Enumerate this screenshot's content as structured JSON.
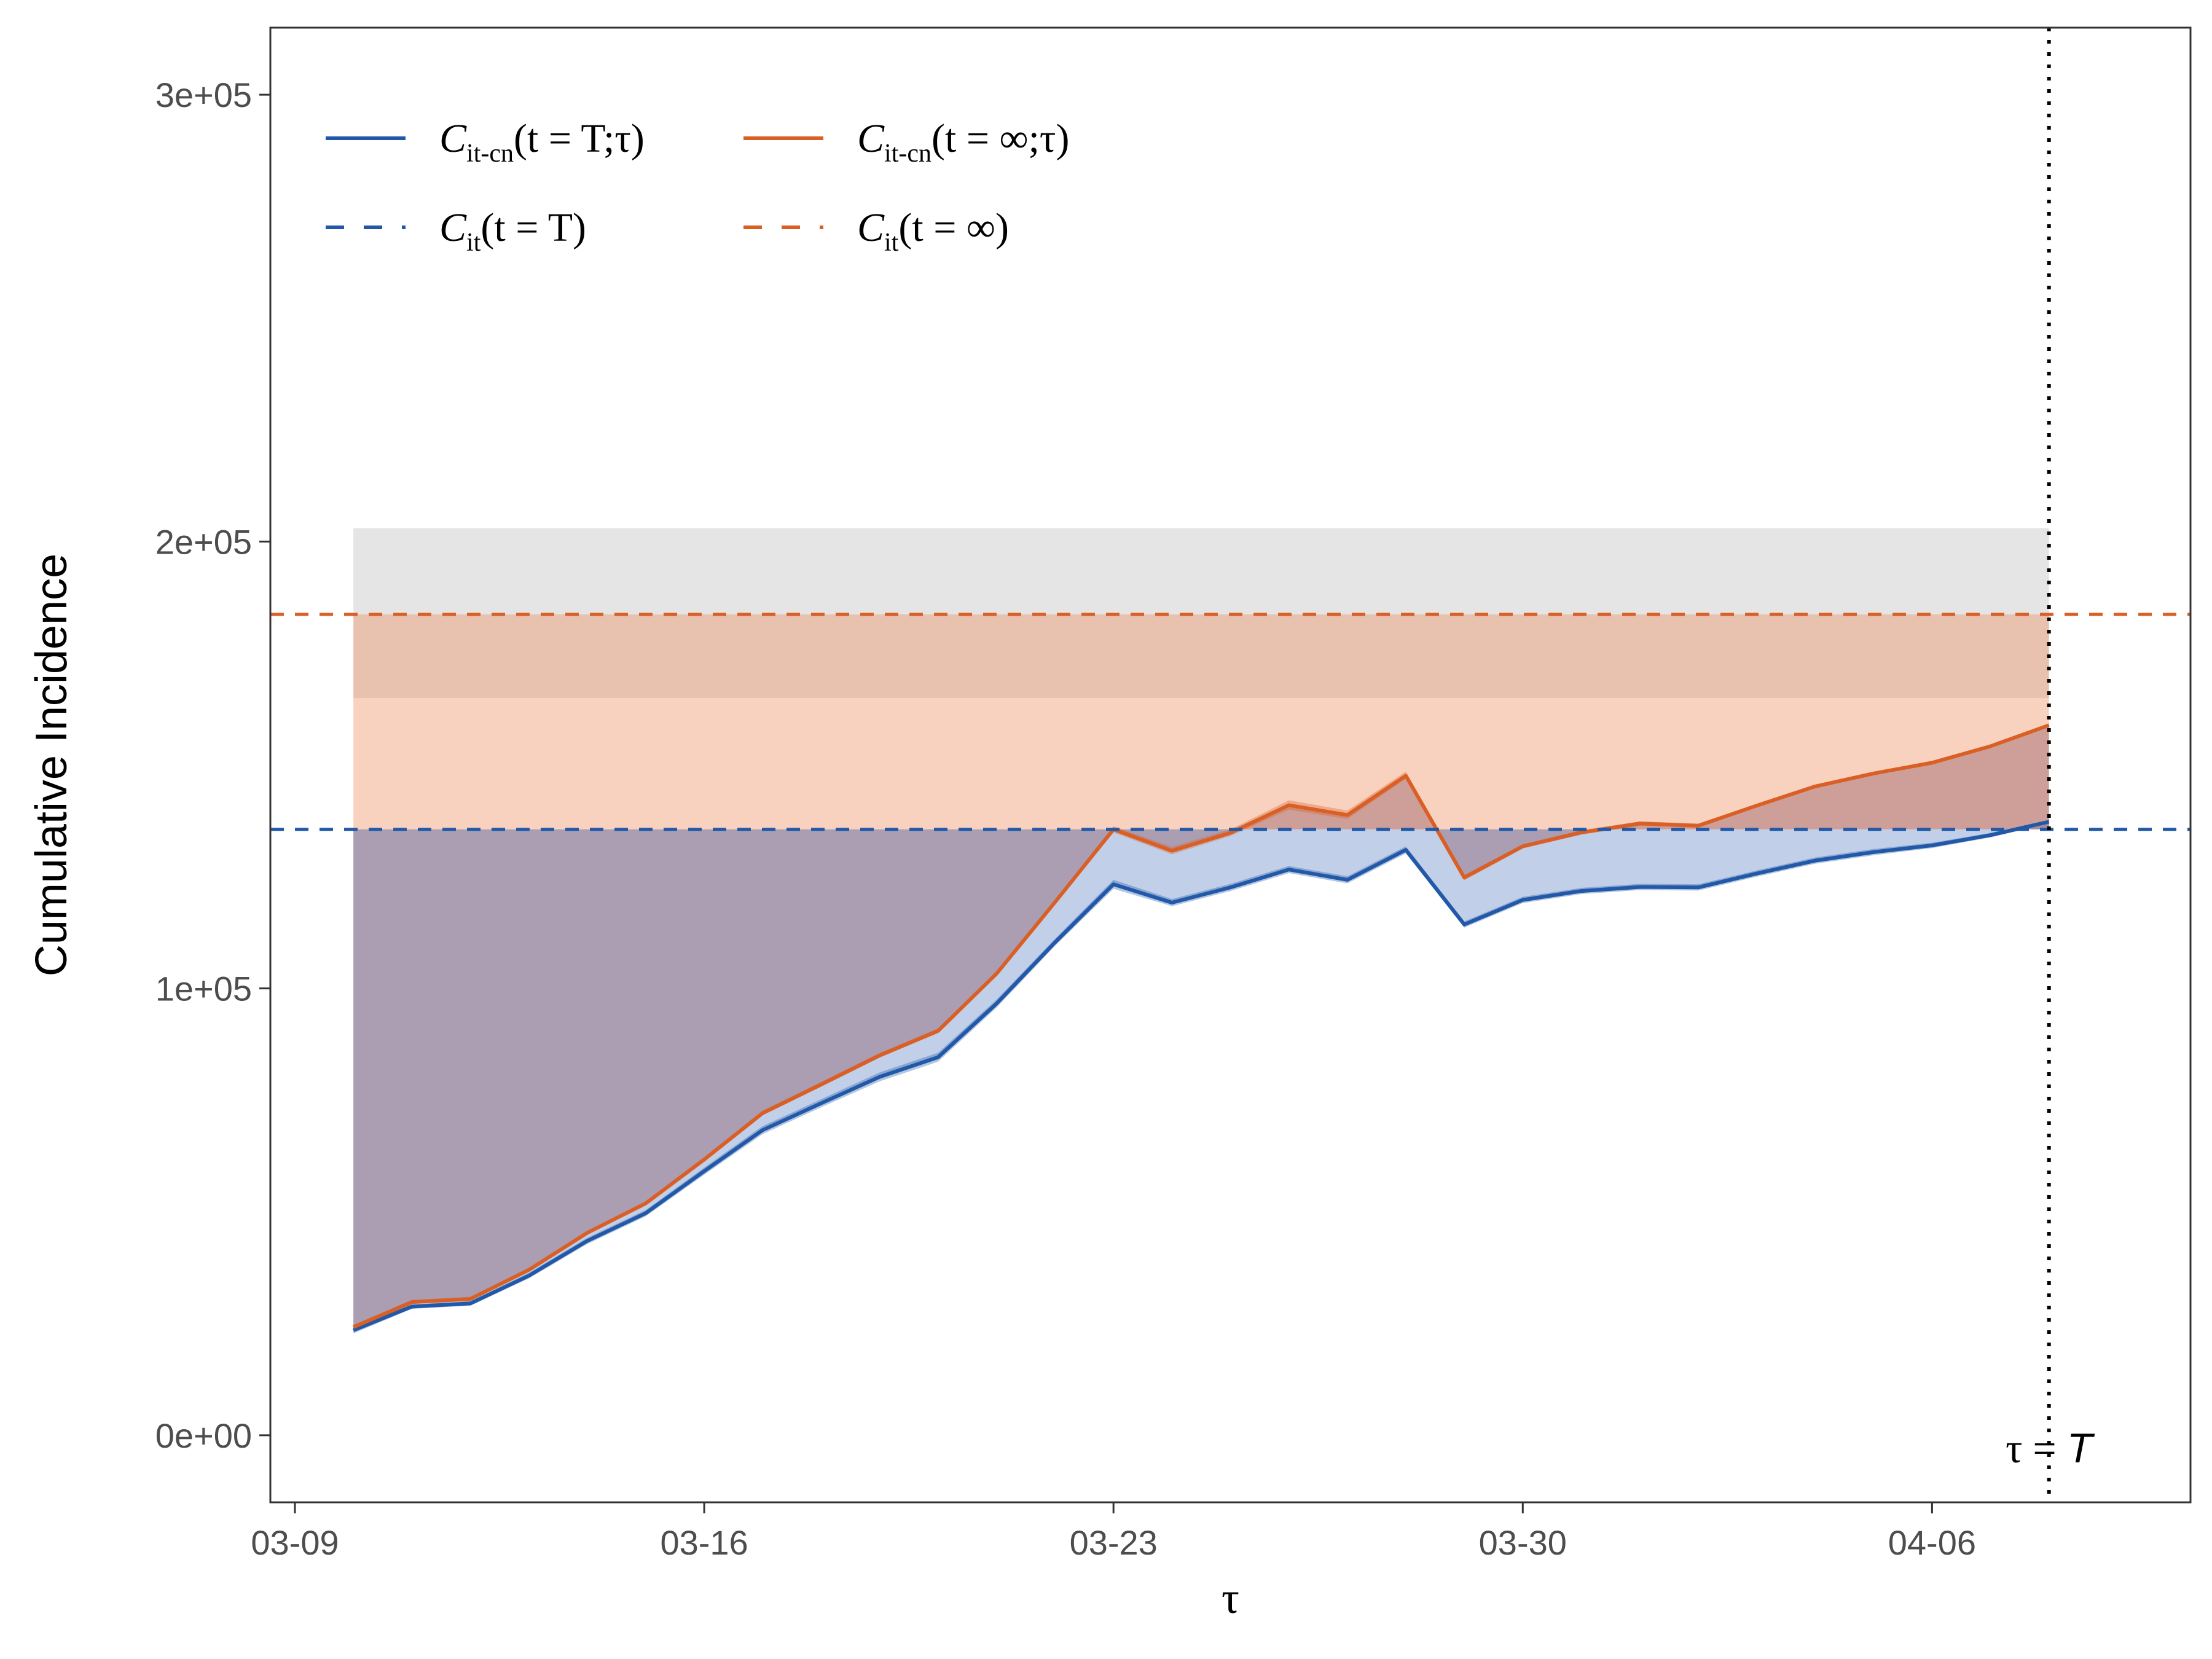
{
  "chart_data": {
    "type": "line",
    "xlabel": "τ",
    "ylabel": "Cumulative Incidence",
    "x_ticks": [
      "03-09",
      "03-16",
      "03-23",
      "03-30",
      "04-06"
    ],
    "y_ticks": [
      "0e+00",
      "1e+05",
      "2e+05",
      "3e+05"
    ],
    "ylim": [
      -15000,
      315000
    ],
    "xlim": [
      "2020-03-09",
      "2020-04-10"
    ],
    "x": [
      "2020-03-10",
      "2020-03-11",
      "2020-03-12",
      "2020-03-13",
      "2020-03-14",
      "2020-03-15",
      "2020-03-16",
      "2020-03-17",
      "2020-03-18",
      "2020-03-19",
      "2020-03-20",
      "2020-03-21",
      "2020-03-22",
      "2020-03-23",
      "2020-03-24",
      "2020-03-25",
      "2020-03-26",
      "2020-03-27",
      "2020-03-28",
      "2020-03-29",
      "2020-03-30",
      "2020-03-31",
      "2020-04-01",
      "2020-04-02",
      "2020-04-03",
      "2020-04-04",
      "2020-04-05",
      "2020-04-06",
      "2020-04-07",
      "2020-04-08"
    ],
    "series": [
      {
        "name": "C_it-cn(t = T;τ)",
        "color": "#2158A8",
        "values": [
          23500,
          28800,
          29500,
          35700,
          43500,
          49700,
          59100,
          68300,
          74300,
          80200,
          84600,
          96600,
          110300,
          123300,
          119200,
          122600,
          126600,
          124300,
          131000,
          114300,
          119800,
          121800,
          122700,
          122600,
          125700,
          128600,
          130500,
          132000,
          134300,
          137300
        ],
        "band_low": [
          22800,
          28300,
          29000,
          35100,
          42800,
          49000,
          58300,
          67400,
          73400,
          79200,
          83600,
          95700,
          109500,
          122300,
          118400,
          121800,
          125800,
          123500,
          130200,
          113600,
          119100,
          121100,
          122000,
          121900,
          125000,
          127900,
          129800,
          131400,
          133800,
          136900
        ],
        "band_high": [
          24200,
          29300,
          30000,
          36300,
          44200,
          50400,
          59900,
          69200,
          75200,
          81200,
          85600,
          97500,
          111100,
          124300,
          120000,
          123400,
          127400,
          125100,
          131800,
          115000,
          120500,
          122500,
          123400,
          123300,
          126400,
          129300,
          131200,
          132600,
          134800,
          137700
        ]
      },
      {
        "name": "C_it-cn(t = ∞;τ)",
        "color": "#D95F25",
        "values": [
          24200,
          29800,
          30500,
          37000,
          45300,
          51900,
          61700,
          72100,
          78500,
          85000,
          90500,
          103300,
          119300,
          135600,
          130800,
          134800,
          141000,
          138800,
          147600,
          124800,
          131800,
          134900,
          136900,
          136400,
          140900,
          145200,
          148100,
          150500,
          154200,
          158900
        ],
        "band_low": [
          23700,
          29400,
          30100,
          36600,
          44900,
          51500,
          61300,
          71600,
          78000,
          84500,
          90000,
          102800,
          118800,
          134900,
          130000,
          134100,
          140000,
          137900,
          146900,
          124200,
          131300,
          134400,
          136400,
          136000,
          140500,
          144800,
          147700,
          150100,
          153900,
          158600
        ],
        "band_high": [
          24700,
          30300,
          31000,
          37500,
          45800,
          52400,
          62300,
          72700,
          79100,
          85600,
          91100,
          103900,
          119900,
          136300,
          131700,
          135600,
          142100,
          139800,
          148500,
          125400,
          132300,
          135400,
          137400,
          136900,
          141300,
          145600,
          148500,
          150900,
          154500,
          159200
        ]
      },
      {
        "name": "C_it(t = T)",
        "color": "#2158A8",
        "dashed": true,
        "value": 135600
      },
      {
        "name": "C_it(t = ∞)",
        "color": "#D95F25",
        "dashed": true,
        "value": 183700
      }
    ],
    "bands": {
      "grey_range": [
        165000,
        203000
      ],
      "orange_range": [
        135600,
        183700
      ]
    },
    "vline": {
      "x": "2020-04-08",
      "label_left": "τ",
      "label_mid": "=",
      "label_right": "T"
    },
    "legend": {
      "placement": "top-left",
      "entries": [
        {
          "main": "C",
          "sub": "it-cn",
          "args": "(t = T;τ)",
          "color": "#2158A8",
          "dashed": false
        },
        {
          "main": "C",
          "sub": "it-cn",
          "args": "(t = ∞;τ)",
          "color": "#D95F25",
          "dashed": false
        },
        {
          "main": "C",
          "sub": "it",
          "args": "(t = T)",
          "color": "#2158A8",
          "dashed": true
        },
        {
          "main": "C",
          "sub": "it",
          "args": "(t = ∞)",
          "color": "#D95F25",
          "dashed": true
        }
      ]
    },
    "grid": false
  }
}
